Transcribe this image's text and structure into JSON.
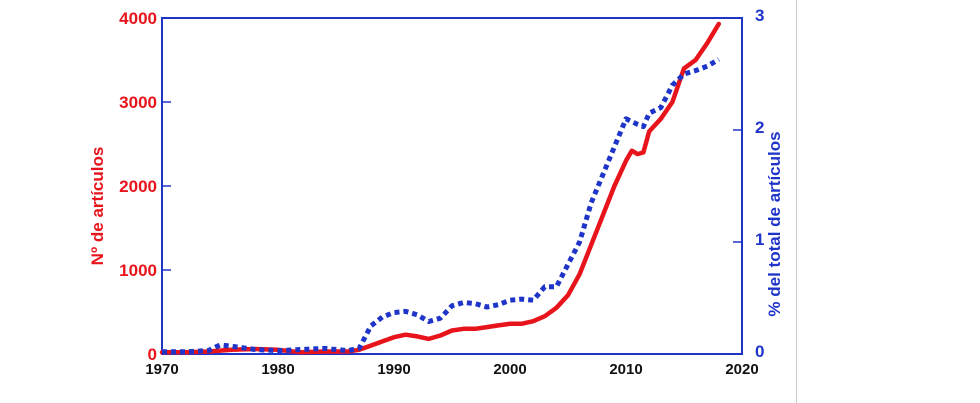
{
  "chart_data": {
    "type": "line",
    "x_ticks": [
      1970,
      1980,
      1990,
      2000,
      2010,
      2020
    ],
    "xlim": [
      1970,
      2020
    ],
    "y_left": {
      "label": "Nº de artículos",
      "ticks": [
        "0",
        "1000",
        "2000",
        "3000",
        "4000"
      ],
      "ylim": [
        0,
        4000
      ],
      "color": "#e8141b"
    },
    "y_right": {
      "label": "% del total de artículos",
      "ticks": [
        "0",
        "1",
        "2",
        "3"
      ],
      "ylim": [
        0,
        3
      ],
      "color": "#1f35c9"
    },
    "series": [
      {
        "axis": "left",
        "style": "solid",
        "color": "#e8141b",
        "x": [
          1970,
          1972,
          1974,
          1976,
          1978,
          1980,
          1982,
          1984,
          1986,
          1987,
          1988,
          1989,
          1990,
          1991,
          1992,
          1993,
          1994,
          1995,
          1996,
          1997,
          1998,
          1999,
          2000,
          2001,
          2002,
          2003,
          2004,
          2005,
          2006,
          2007,
          2008,
          2009,
          2010,
          2010.5,
          2011,
          2011.5,
          2012,
          2013,
          2014,
          2014.5,
          2015,
          2016,
          2017,
          2018
        ],
        "values": [
          20,
          20,
          30,
          50,
          60,
          50,
          20,
          30,
          30,
          50,
          100,
          150,
          200,
          230,
          210,
          180,
          220,
          280,
          300,
          300,
          320,
          340,
          360,
          360,
          390,
          450,
          550,
          700,
          950,
          1300,
          1650,
          2000,
          2300,
          2420,
          2380,
          2400,
          2650,
          2800,
          3000,
          3200,
          3400,
          3500,
          3700,
          3930
        ]
      },
      {
        "axis": "right",
        "style": "dotted",
        "color": "#1f35c9",
        "x": [
          1970,
          1972,
          1974,
          1975,
          1976,
          1978,
          1980,
          1982,
          1984,
          1986,
          1987,
          1988,
          1989,
          1990,
          1991,
          1992,
          1993,
          1994,
          1995,
          1996,
          1997,
          1998,
          1999,
          2000,
          2001,
          2002,
          2003,
          2004,
          2005,
          2006,
          2007,
          2008,
          2009,
          2010,
          2011,
          2011.5,
          2012,
          2013,
          2014,
          2015,
          2016,
          2017,
          2018
        ],
        "values": [
          0.02,
          0.02,
          0.03,
          0.08,
          0.07,
          0.04,
          0.03,
          0.04,
          0.05,
          0.03,
          0.05,
          0.25,
          0.33,
          0.37,
          0.38,
          0.35,
          0.29,
          0.32,
          0.43,
          0.46,
          0.45,
          0.42,
          0.44,
          0.48,
          0.49,
          0.48,
          0.6,
          0.6,
          0.8,
          1.0,
          1.35,
          1.6,
          1.85,
          2.1,
          2.05,
          2.03,
          2.15,
          2.2,
          2.4,
          2.5,
          2.53,
          2.57,
          2.63
        ]
      }
    ],
    "grid": false,
    "legend": "none"
  }
}
